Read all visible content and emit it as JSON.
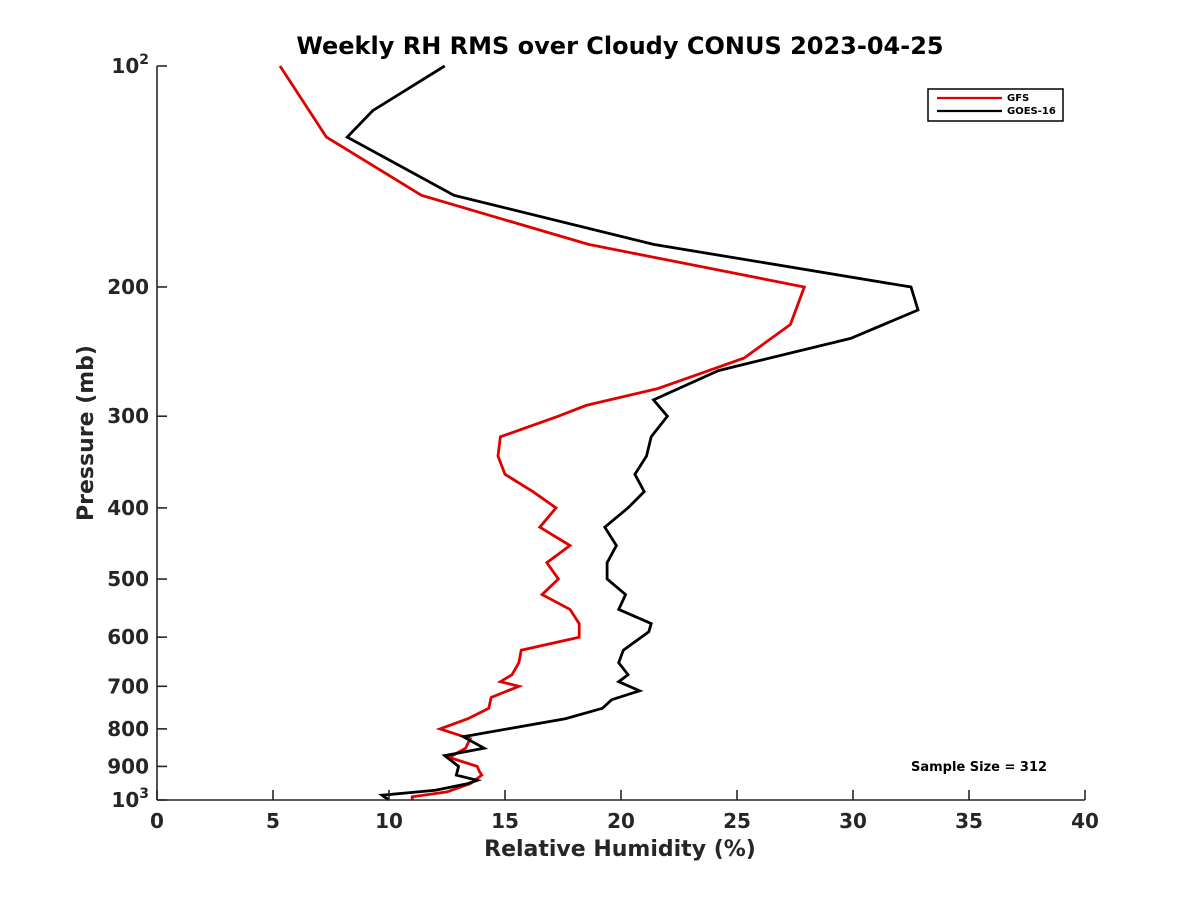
{
  "chart_data": {
    "type": "line",
    "title": "Weekly RH RMS over Cloudy CONUS 2023-04-25",
    "xlabel": "Relative Humidity (%)",
    "ylabel": "Pressure (mb)",
    "xlim": [
      0,
      40
    ],
    "ylim": [
      100,
      1000
    ],
    "y_scale": "log",
    "y_reversed": true,
    "grid": false,
    "legend_position": "top-right",
    "annotation": "Sample Size = 312",
    "x_ticks": [
      "0",
      "5",
      "10",
      "15",
      "20",
      "25",
      "30",
      "35",
      "40"
    ],
    "y_tick_values": [
      100,
      200,
      300,
      400,
      500,
      600,
      700,
      800,
      900,
      1000
    ],
    "y_tick_labels": [
      {
        "base": "10",
        "exp": "2"
      },
      {
        "base": "200",
        "exp": ""
      },
      {
        "base": "300",
        "exp": ""
      },
      {
        "base": "400",
        "exp": ""
      },
      {
        "base": "500",
        "exp": ""
      },
      {
        "base": "600",
        "exp": ""
      },
      {
        "base": "700",
        "exp": ""
      },
      {
        "base": "800",
        "exp": ""
      },
      {
        "base": "900",
        "exp": ""
      },
      {
        "base": "10",
        "exp": "3"
      }
    ],
    "series": [
      {
        "name": "GFS",
        "color": "#e00000",
        "points": [
          [
            5.3,
            100
          ],
          [
            7.3,
            125
          ],
          [
            11.4,
            150
          ],
          [
            18.6,
            175
          ],
          [
            27.9,
            200
          ],
          [
            27.3,
            225
          ],
          [
            25.3,
            250
          ],
          [
            21.6,
            275
          ],
          [
            18.5,
            290
          ],
          [
            17.3,
            300
          ],
          [
            14.8,
            320
          ],
          [
            14.7,
            340
          ],
          [
            15.0,
            360
          ],
          [
            16.2,
            380
          ],
          [
            17.2,
            400
          ],
          [
            16.5,
            425
          ],
          [
            17.8,
            450
          ],
          [
            16.8,
            475
          ],
          [
            17.3,
            500
          ],
          [
            16.6,
            525
          ],
          [
            17.8,
            550
          ],
          [
            18.2,
            575
          ],
          [
            18.2,
            600
          ],
          [
            15.7,
            625
          ],
          [
            15.6,
            650
          ],
          [
            15.3,
            675
          ],
          [
            14.8,
            690
          ],
          [
            15.6,
            700
          ],
          [
            14.4,
            725
          ],
          [
            14.3,
            750
          ],
          [
            13.4,
            775
          ],
          [
            12.2,
            800
          ],
          [
            13.5,
            825
          ],
          [
            13.3,
            850
          ],
          [
            12.6,
            875
          ],
          [
            13.8,
            900
          ],
          [
            13.9,
            915
          ],
          [
            14.0,
            925
          ],
          [
            13.5,
            950
          ],
          [
            12.5,
            975
          ],
          [
            11.0,
            990
          ],
          [
            11.0,
            1000
          ]
        ]
      },
      {
        "name": "GOES-16",
        "color": "#000000",
        "points": [
          [
            12.4,
            100
          ],
          [
            9.3,
            115
          ],
          [
            8.2,
            125
          ],
          [
            12.8,
            150
          ],
          [
            21.4,
            175
          ],
          [
            32.5,
            200
          ],
          [
            32.8,
            215
          ],
          [
            29.9,
            235
          ],
          [
            24.2,
            260
          ],
          [
            21.4,
            285
          ],
          [
            22.0,
            300
          ],
          [
            21.3,
            320
          ],
          [
            21.1,
            340
          ],
          [
            20.6,
            360
          ],
          [
            21.0,
            380
          ],
          [
            20.3,
            400
          ],
          [
            19.3,
            425
          ],
          [
            19.8,
            450
          ],
          [
            19.4,
            475
          ],
          [
            19.4,
            500
          ],
          [
            20.2,
            525
          ],
          [
            19.9,
            550
          ],
          [
            21.3,
            575
          ],
          [
            21.2,
            590
          ],
          [
            20.1,
            625
          ],
          [
            19.9,
            650
          ],
          [
            20.3,
            675
          ],
          [
            19.9,
            690
          ],
          [
            20.8,
            710
          ],
          [
            19.6,
            730
          ],
          [
            19.2,
            750
          ],
          [
            17.6,
            775
          ],
          [
            13.2,
            820
          ],
          [
            14.1,
            850
          ],
          [
            12.4,
            870
          ],
          [
            13.0,
            900
          ],
          [
            12.9,
            925
          ],
          [
            13.8,
            940
          ],
          [
            13.4,
            950
          ],
          [
            12.0,
            970
          ],
          [
            9.7,
            985
          ],
          [
            10.0,
            1000
          ]
        ]
      }
    ]
  }
}
